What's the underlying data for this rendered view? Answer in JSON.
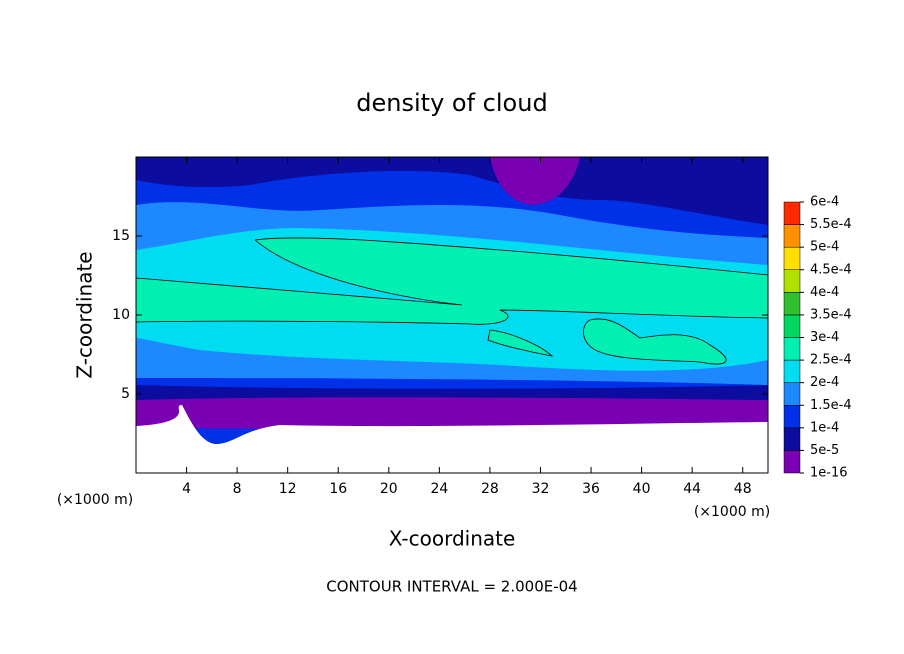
{
  "chart_data": {
    "type": "contour",
    "title": "density of cloud",
    "x_label": "X-coordinate",
    "y_label": "Z-coordinate",
    "x_unit": "(×1000 m)",
    "y_unit": "(×1000 m)",
    "note": "CONTOUR INTERVAL = 2.000E-04",
    "xlim": [
      0,
      50
    ],
    "xticks": [
      4,
      8,
      12,
      16,
      20,
      24,
      28,
      32,
      36,
      40,
      44,
      48
    ],
    "ylim": [
      0,
      20
    ],
    "yticks": [
      5,
      10,
      15
    ],
    "colorbar_ticks": [
      {
        "value": 1e-16,
        "label": "1e-16"
      },
      {
        "value": 5e-05,
        "label": "5e-5"
      },
      {
        "value": 0.0001,
        "label": "1e-4"
      },
      {
        "value": 0.00015,
        "label": "1.5e-4"
      },
      {
        "value": 0.0002,
        "label": "2e-4"
      },
      {
        "value": 0.00025,
        "label": "2.5e-4"
      },
      {
        "value": 0.0003,
        "label": "3e-4"
      },
      {
        "value": 0.00035,
        "label": "3.5e-4"
      },
      {
        "value": 0.0004,
        "label": "4e-4"
      },
      {
        "value": 0.00045,
        "label": "4.5e-4"
      },
      {
        "value": 0.0005,
        "label": "5e-4"
      },
      {
        "value": 0.00055,
        "label": "5.5e-4"
      },
      {
        "value": 0.0006,
        "label": "6e-4"
      }
    ],
    "colors": [
      "#7a00b4",
      "#0c0c9e",
      "#0030e8",
      "#1e88ff",
      "#00dcf0",
      "#00f0b4",
      "#00d860",
      "#30c030",
      "#b0e000",
      "#ffe000",
      "#ff9000",
      "#ff2a00",
      "#ff8a8a"
    ]
  }
}
